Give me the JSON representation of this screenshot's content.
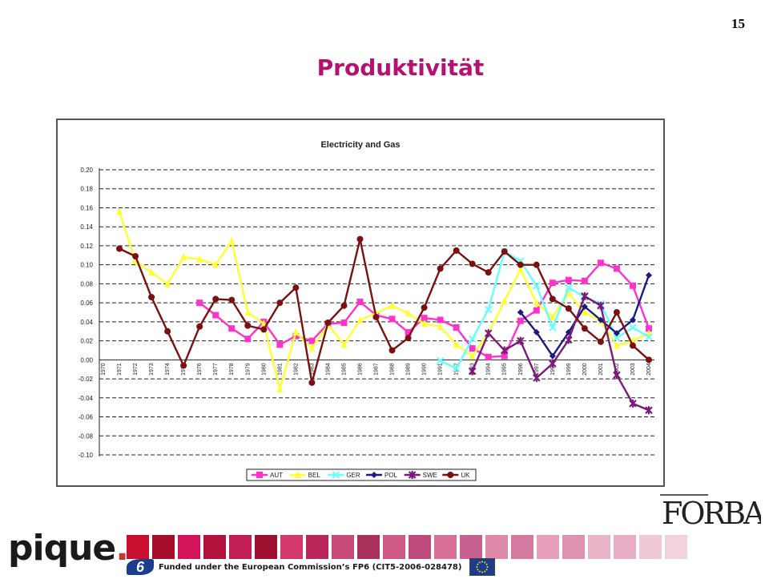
{
  "page": {
    "number": "15",
    "title": "Produktivität",
    "footer_text": "Funded under the European Commission’s FP6 (CIT5-2006-028478)",
    "logo_pique": "pique",
    "logo_forba": "FORBA",
    "fp6_badge": "6"
  },
  "colors": {
    "title": "#b5126f",
    "AUT": "#ff33cc",
    "BEL": "#ffff33",
    "GER": "#66ffff",
    "POL": "#1a1a80",
    "SWE": "#7a1a7a",
    "UK": "#7a1010"
  },
  "chart_data": {
    "type": "line",
    "title": "Electricity and Gas",
    "xlabel": "",
    "ylabel": "",
    "ylim": [
      -0.1,
      0.2
    ],
    "yticks": [
      0.2,
      0.18,
      0.16,
      0.14,
      0.12,
      0.1,
      0.08,
      0.06,
      0.04,
      0.02,
      0.0,
      -0.02,
      -0.04,
      -0.06,
      -0.08,
      -0.1
    ],
    "ytick_labels": [
      "0.20",
      "0.18",
      "0.16",
      "0.14",
      "0.12",
      "0.10",
      "0.08",
      "0.06",
      "0.04",
      "0.02",
      "0.00",
      "-0.02",
      "-0.04",
      "-0.06",
      "-0.08",
      "-0.10"
    ],
    "grid": "horizontal dashed",
    "legend_position": "bottom",
    "categories": [
      "1970",
      "1971",
      "1972",
      "1973",
      "1974",
      "1975",
      "1976",
      "1977",
      "1978",
      "1979",
      "1980",
      "1981",
      "1982",
      "1983",
      "1984",
      "1985",
      "1986",
      "1987",
      "1988",
      "1989",
      "1990",
      "1991",
      "1992",
      "1993",
      "1994",
      "1995",
      "1996",
      "1997",
      "1998",
      "1999",
      "2000",
      "2001",
      "2002",
      "2003",
      "2004"
    ],
    "series": [
      {
        "name": "AUT",
        "marker": "square",
        "values": [
          null,
          null,
          null,
          null,
          null,
          null,
          0.06,
          0.047,
          0.033,
          0.022,
          0.04,
          0.016,
          0.025,
          0.02,
          0.038,
          0.039,
          0.061,
          0.047,
          0.043,
          0.029,
          0.044,
          0.042,
          0.034,
          0.012,
          0.003,
          0.004,
          0.041,
          0.052,
          0.081,
          0.084,
          0.083,
          0.102,
          0.096,
          0.078,
          0.033
        ]
      },
      {
        "name": "BEL",
        "marker": "triangle",
        "values": [
          null,
          0.156,
          0.104,
          0.092,
          0.08,
          0.108,
          0.106,
          0.1,
          0.125,
          0.05,
          0.038,
          -0.031,
          0.029,
          0.012,
          0.037,
          0.016,
          0.042,
          0.049,
          0.057,
          0.049,
          0.038,
          0.035,
          0.016,
          0.004,
          0.028,
          0.062,
          0.095,
          0.06,
          0.045,
          0.07,
          0.05,
          0.041,
          0.015,
          0.02,
          0.028
        ]
      },
      {
        "name": "GER",
        "marker": "x",
        "values": [
          null,
          null,
          null,
          null,
          null,
          null,
          null,
          null,
          null,
          null,
          null,
          null,
          null,
          null,
          null,
          null,
          null,
          null,
          null,
          null,
          null,
          -0.001,
          -0.009,
          0.022,
          0.053,
          0.114,
          0.104,
          0.078,
          0.034,
          0.076,
          0.066,
          0.059,
          0.023,
          0.034,
          0.024
        ]
      },
      {
        "name": "POL",
        "marker": "diamond",
        "values": [
          null,
          null,
          null,
          null,
          null,
          null,
          null,
          null,
          null,
          null,
          null,
          null,
          null,
          null,
          null,
          null,
          null,
          null,
          null,
          null,
          null,
          null,
          null,
          null,
          null,
          null,
          0.05,
          0.029,
          0.004,
          0.029,
          0.056,
          0.042,
          0.028,
          0.042,
          0.089
        ]
      },
      {
        "name": "SWE",
        "marker": "star",
        "values": [
          null,
          null,
          null,
          null,
          null,
          null,
          null,
          null,
          null,
          null,
          null,
          null,
          null,
          null,
          null,
          null,
          null,
          null,
          null,
          null,
          null,
          null,
          null,
          -0.012,
          0.028,
          0.01,
          0.02,
          -0.019,
          -0.004,
          0.021,
          0.067,
          0.057,
          -0.016,
          -0.046,
          -0.053
        ]
      },
      {
        "name": "UK",
        "marker": "circle",
        "values": [
          null,
          0.117,
          0.109,
          0.066,
          0.03,
          -0.006,
          0.035,
          0.064,
          0.063,
          0.036,
          0.032,
          0.06,
          0.076,
          -0.024,
          0.039,
          0.057,
          0.127,
          0.045,
          0.01,
          0.023,
          0.055,
          0.096,
          0.115,
          0.101,
          0.092,
          0.114,
          0.1,
          0.1,
          0.064,
          0.054,
          0.033,
          0.019,
          0.05,
          0.015,
          0.0
        ]
      }
    ]
  }
}
